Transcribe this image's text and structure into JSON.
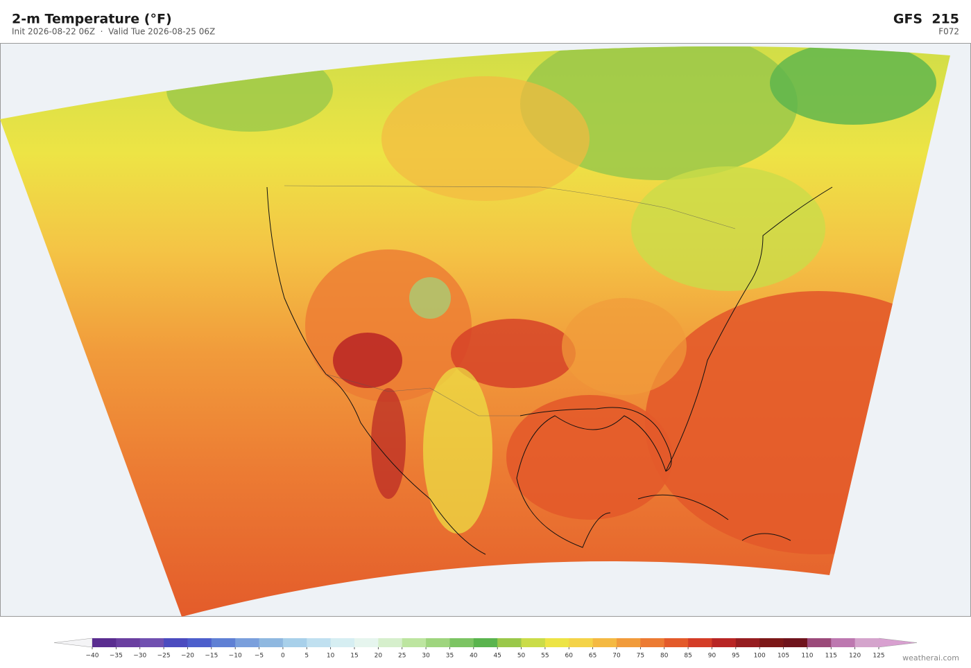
{
  "header": {
    "title": "2-m Temperature  (°F)",
    "subtitle": "Init 2026-08-22 06Z  ·  Valid Tue 2026-08-25 06Z",
    "model": "GFS  215",
    "forecast_hour": "F072"
  },
  "colorbar": {
    "range": [
      -40,
      125
    ],
    "ticks": [
      {
        "value": -40,
        "label": "−40"
      },
      {
        "value": -35,
        "label": "−35"
      },
      {
        "value": -30,
        "label": "−30"
      },
      {
        "value": -25,
        "label": "−25"
      },
      {
        "value": -20,
        "label": "−20"
      },
      {
        "value": -15,
        "label": "−15"
      },
      {
        "value": -10,
        "label": "−10"
      },
      {
        "value": -5,
        "label": "−5"
      },
      0,
      5,
      10,
      15,
      20,
      25,
      30,
      35,
      40,
      45,
      50,
      55,
      60,
      65,
      70,
      75,
      80,
      85,
      90,
      95,
      100,
      105,
      110,
      115,
      120,
      125
    ],
    "colors": [
      "#5a2d90",
      "#6a3fa0",
      "#7050b0",
      "#4b4bbf",
      "#4d5fcc",
      "#5f80d4",
      "#7a9fdc",
      "#8fb8e0",
      "#a8d0ea",
      "#c0e0f0",
      "#d6eef2",
      "#e6f5ee",
      "#d6efcc",
      "#bde5a0",
      "#9fd57e",
      "#7cc463",
      "#5ab44e",
      "#9ac84a",
      "#cadc48",
      "#ede445",
      "#f4d348",
      "#f4b942",
      "#f19b3b",
      "#ec7b33",
      "#e35a2a",
      "#d43d27",
      "#b82524",
      "#961d20",
      "#7c1818",
      "#6f141c",
      "#9b4a7a",
      "#bd78b0",
      "#d4a4cc"
    ],
    "under_color": "#f4f4f6",
    "over_color": "#d8a0d0"
  },
  "credit": "weatherai.com"
}
